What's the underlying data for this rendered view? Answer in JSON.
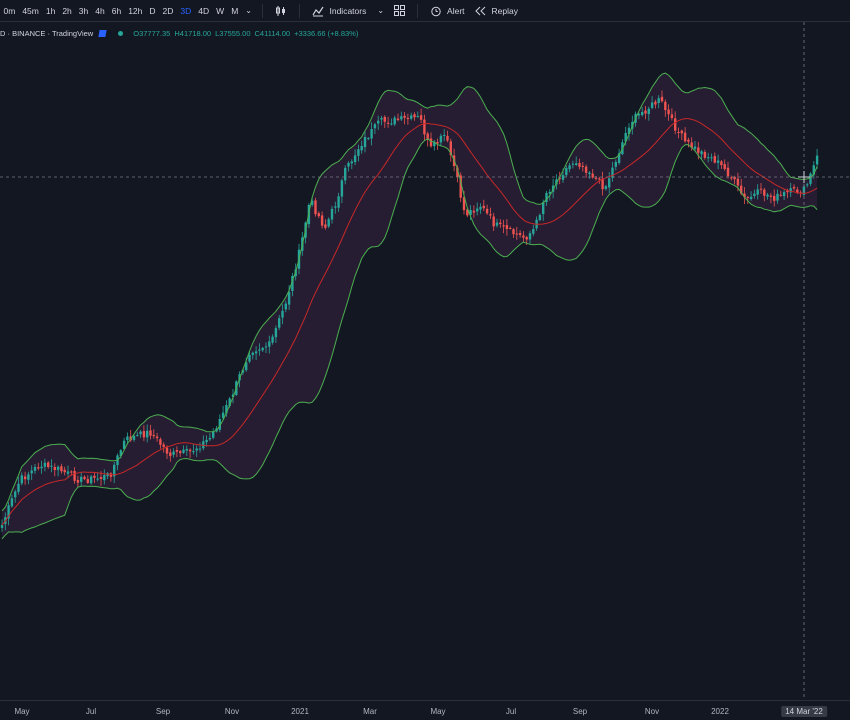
{
  "toolbar": {
    "timeframes": [
      "0m",
      "45m",
      "1h",
      "2h",
      "3h",
      "4h",
      "6h",
      "12h",
      "D",
      "2D",
      "3D",
      "4D",
      "W",
      "M"
    ],
    "active_timeframe": "3D",
    "indicators_label": "Indicators",
    "alert_label": "Alert",
    "replay_label": "Replay"
  },
  "legend": {
    "symbol": "D · BINANCE · TradingView",
    "open": "O37777.35",
    "high": "H41718.00",
    "low": "L37555.00",
    "close": "C41114.00",
    "change": "+3336.66 (+8.83%)"
  },
  "x_axis": {
    "labels": [
      "May",
      "Jul",
      "Sep",
      "Nov",
      "2021",
      "Mar",
      "May",
      "Jul",
      "Sep",
      "Nov",
      "2022"
    ],
    "crosshair_label": "14 Mar '22"
  },
  "colors": {
    "background": "#131722",
    "up": "#26a69a",
    "down": "#ef5350",
    "basis": "#c62828",
    "band": "#4caf50",
    "band_fill": "#2a1f35"
  },
  "chart_data": {
    "type": "candlestick",
    "indicator": "Bollinger Bands",
    "x": [
      "May",
      "Jul",
      "Sep",
      "Nov",
      "2021",
      "Mar",
      "May",
      "Jul",
      "Sep",
      "Nov",
      "2022",
      "14 Mar '22"
    ],
    "close_trend": [
      0.08,
      0.12,
      0.13,
      0.14,
      0.42,
      0.72,
      0.55,
      0.48,
      0.68,
      0.82,
      0.61,
      0.72
    ],
    "note_scale": "relative"
  }
}
